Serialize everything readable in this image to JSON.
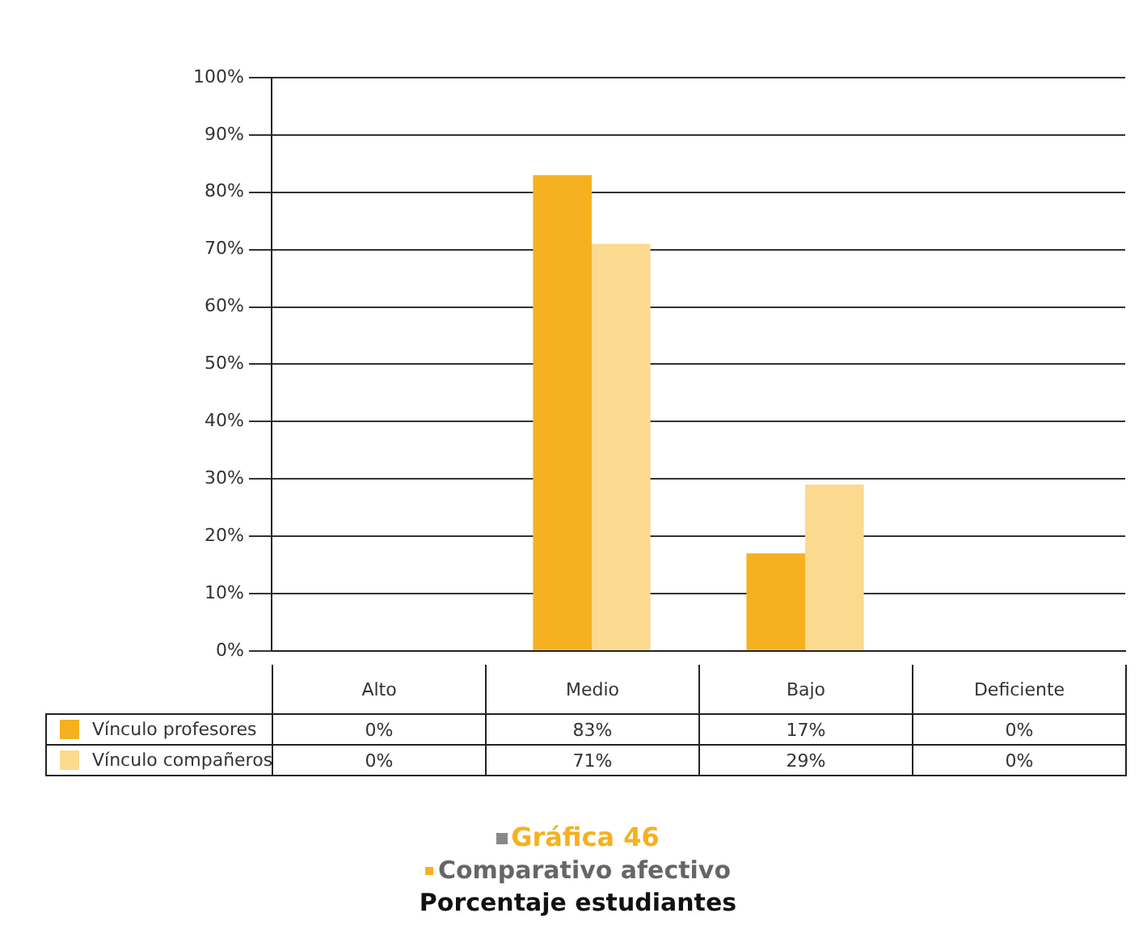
{
  "chart_data": {
    "type": "bar",
    "title": "Gráfica 46",
    "subtitle": "Comparativo afectivo",
    "annotations": [
      "Porcentaje estudiantes"
    ],
    "categories": [
      "Alto",
      "Medio",
      "Bajo",
      "Deficiente"
    ],
    "series": [
      {
        "name": "Vínculo profesores",
        "color": "#f5b120",
        "values": [
          0,
          83,
          17,
          0
        ],
        "value_labels": [
          "0%",
          "83%",
          "17%",
          "0%"
        ]
      },
      {
        "name": "Vínculo compañeros",
        "color": "#fbd98f",
        "values": [
          0,
          71,
          29,
          0
        ],
        "value_labels": [
          "0%",
          "71%",
          "29%",
          "0%"
        ]
      }
    ],
    "ylim": [
      0,
      100
    ],
    "yticks": [
      {
        "value": 0,
        "label": "0%"
      },
      {
        "value": 10,
        "label": "10%"
      },
      {
        "value": 20,
        "label": "20%"
      },
      {
        "value": 30,
        "label": "30%"
      },
      {
        "value": 40,
        "label": "40%"
      },
      {
        "value": 50,
        "label": "50%"
      },
      {
        "value": 60,
        "label": "60%"
      },
      {
        "value": 70,
        "label": "70%"
      },
      {
        "value": 80,
        "label": "80%"
      },
      {
        "value": 90,
        "label": "90%"
      },
      {
        "value": 100,
        "label": "100%"
      }
    ],
    "grid": "y",
    "legend": "bottom",
    "data_labels": true
  }
}
